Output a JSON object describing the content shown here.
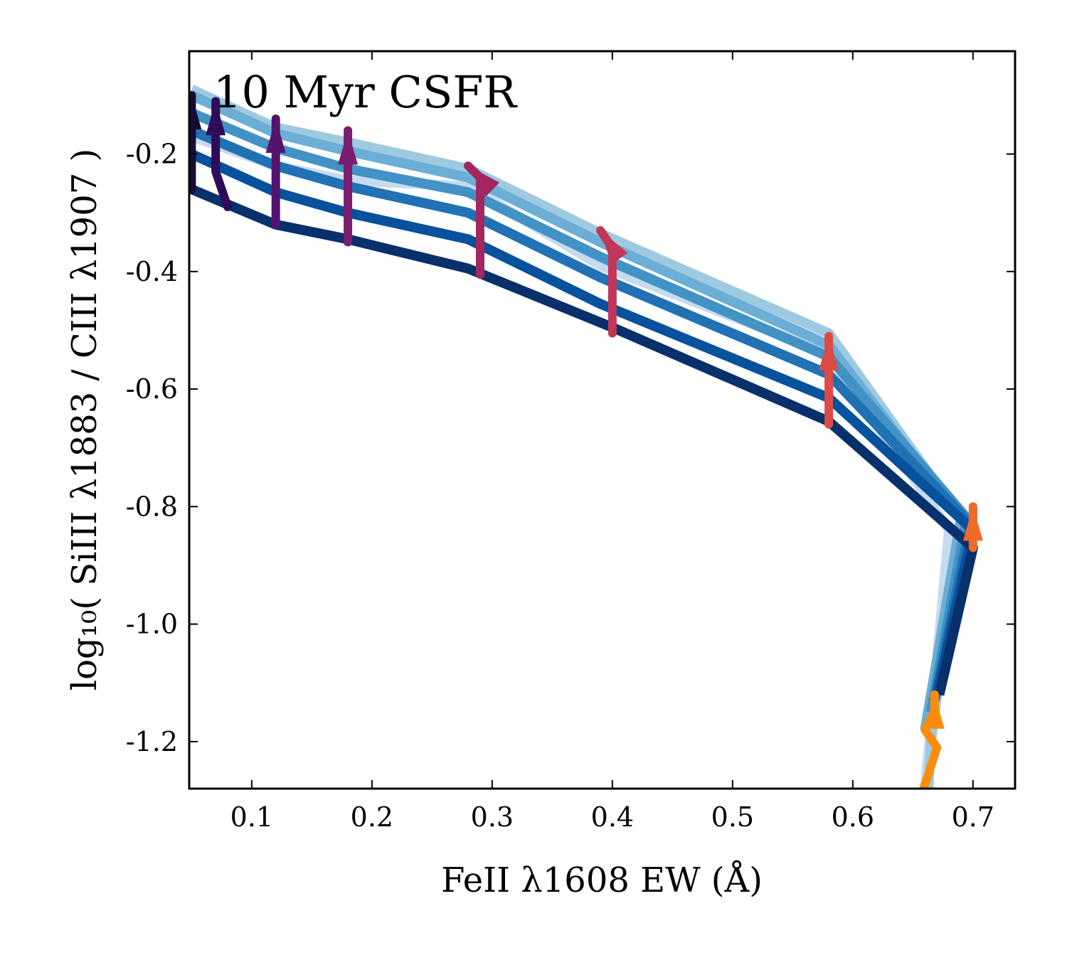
{
  "chart_data": {
    "type": "line",
    "annotation": "10 Myr CSFR",
    "xlabel": "FeII λ1608 EW (Å)",
    "ylabel": "log₁₀( SiIII λ1883 / CIII λ1907 )",
    "xlim": [
      0.048,
      0.735
    ],
    "ylim": [
      -1.28,
      -0.025
    ],
    "xticks": [
      {
        "value": 0.1,
        "label": "0.1"
      },
      {
        "value": 0.2,
        "label": "0.2"
      },
      {
        "value": 0.3,
        "label": "0.3"
      },
      {
        "value": 0.4,
        "label": "0.4"
      },
      {
        "value": 0.5,
        "label": "0.5"
      },
      {
        "value": 0.6,
        "label": "0.6"
      },
      {
        "value": 0.7,
        "label": "0.7"
      }
    ],
    "yticks": [
      {
        "value": -0.2,
        "label": "-0.2"
      },
      {
        "value": -0.4,
        "label": "-0.4"
      },
      {
        "value": -0.6,
        "label": "-0.6"
      },
      {
        "value": -0.8,
        "label": "-0.8"
      },
      {
        "value": -1.0,
        "label": "-1.0"
      },
      {
        "value": -1.2,
        "label": "-1.2"
      }
    ],
    "series": [
      {
        "name": "blue-1",
        "color": "#c6dbef",
        "width": 14,
        "points": [
          [
            0.05,
            -0.17
          ],
          [
            0.12,
            -0.22
          ],
          [
            0.18,
            -0.245
          ],
          [
            0.28,
            -0.255
          ],
          [
            0.39,
            -0.39
          ],
          [
            0.58,
            -0.54
          ],
          [
            0.68,
            -0.84
          ],
          [
            0.66,
            -1.28
          ]
        ]
      },
      {
        "name": "blue-2",
        "color": "#9ecae1",
        "width": 14,
        "points": [
          [
            0.05,
            -0.09
          ],
          [
            0.12,
            -0.155
          ],
          [
            0.18,
            -0.18
          ],
          [
            0.28,
            -0.225
          ],
          [
            0.39,
            -0.335
          ],
          [
            0.58,
            -0.505
          ],
          [
            0.69,
            -0.82
          ],
          [
            0.665,
            -1.2
          ],
          [
            0.663,
            -1.28
          ]
        ]
      },
      {
        "name": "blue-3",
        "color": "#6baed6",
        "width": 14,
        "points": [
          [
            0.05,
            -0.1
          ],
          [
            0.12,
            -0.165
          ],
          [
            0.18,
            -0.195
          ],
          [
            0.28,
            -0.24
          ],
          [
            0.39,
            -0.35
          ],
          [
            0.58,
            -0.525
          ],
          [
            0.69,
            -0.82
          ],
          [
            0.66,
            -1.18
          ]
        ]
      },
      {
        "name": "blue-4",
        "color": "#4292c6",
        "width": 14,
        "points": [
          [
            0.05,
            -0.13
          ],
          [
            0.12,
            -0.19
          ],
          [
            0.18,
            -0.225
          ],
          [
            0.28,
            -0.265
          ],
          [
            0.39,
            -0.375
          ],
          [
            0.58,
            -0.545
          ],
          [
            0.695,
            -0.82
          ],
          [
            0.665,
            -1.15
          ]
        ]
      },
      {
        "name": "blue-5",
        "color": "#2171b5",
        "width": 14,
        "points": [
          [
            0.05,
            -0.16
          ],
          [
            0.12,
            -0.22
          ],
          [
            0.18,
            -0.255
          ],
          [
            0.28,
            -0.3
          ],
          [
            0.39,
            -0.41
          ],
          [
            0.58,
            -0.575
          ],
          [
            0.698,
            -0.83
          ],
          [
            0.668,
            -1.13
          ]
        ]
      },
      {
        "name": "blue-6",
        "color": "#08519c",
        "width": 14,
        "points": [
          [
            0.05,
            -0.2
          ],
          [
            0.12,
            -0.265
          ],
          [
            0.18,
            -0.3
          ],
          [
            0.28,
            -0.345
          ],
          [
            0.39,
            -0.455
          ],
          [
            0.58,
            -0.615
          ],
          [
            0.7,
            -0.84
          ],
          [
            0.67,
            -1.12
          ]
        ]
      },
      {
        "name": "blue-7",
        "color": "#08306b",
        "width": 14,
        "points": [
          [
            0.05,
            -0.26
          ],
          [
            0.12,
            -0.32
          ],
          [
            0.18,
            -0.345
          ],
          [
            0.28,
            -0.395
          ],
          [
            0.4,
            -0.495
          ],
          [
            0.58,
            -0.655
          ],
          [
            0.7,
            -0.87
          ],
          [
            0.672,
            -1.12
          ]
        ]
      }
    ],
    "arrows": [
      {
        "color": "#160c33",
        "points": [
          [
            0.05,
            -0.26
          ],
          [
            0.05,
            -0.1
          ]
        ]
      },
      {
        "color": "#2f0b5a",
        "points": [
          [
            0.08,
            -0.29
          ],
          [
            0.07,
            -0.23
          ],
          [
            0.07,
            -0.11
          ]
        ]
      },
      {
        "color": "#54146e",
        "points": [
          [
            0.12,
            -0.32
          ],
          [
            0.12,
            -0.14
          ]
        ]
      },
      {
        "color": "#7c1d6f",
        "points": [
          [
            0.18,
            -0.35
          ],
          [
            0.18,
            -0.16
          ]
        ]
      },
      {
        "color": "#a3265e",
        "points": [
          [
            0.29,
            -0.405
          ],
          [
            0.29,
            -0.24
          ],
          [
            0.28,
            -0.22
          ]
        ]
      },
      {
        "color": "#c2365a",
        "points": [
          [
            0.4,
            -0.505
          ],
          [
            0.4,
            -0.36
          ],
          [
            0.39,
            -0.33
          ]
        ]
      },
      {
        "color": "#dd4b44",
        "points": [
          [
            0.58,
            -0.66
          ],
          [
            0.58,
            -0.51
          ]
        ]
      },
      {
        "color": "#f06a28",
        "points": [
          [
            0.7,
            -0.87
          ],
          [
            0.7,
            -0.8
          ]
        ]
      },
      {
        "color": "#fb8c0d",
        "points": [
          [
            0.659,
            -1.28
          ],
          [
            0.67,
            -1.21
          ],
          [
            0.66,
            -1.18
          ],
          [
            0.668,
            -1.15
          ],
          [
            0.668,
            -1.12
          ]
        ]
      }
    ]
  }
}
